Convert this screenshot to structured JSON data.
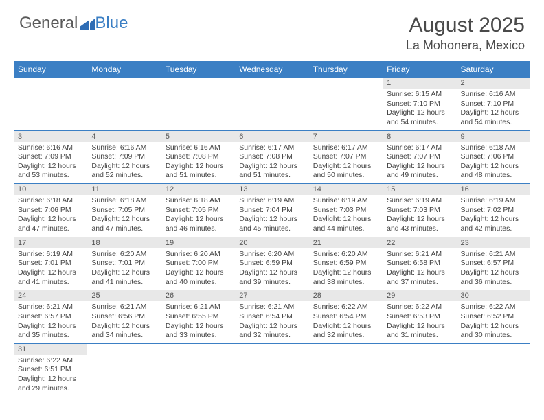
{
  "logo": {
    "text_general": "General",
    "text_blue": "Blue"
  },
  "title": {
    "month": "August 2025",
    "location": "La Mohonera, Mexico"
  },
  "colors": {
    "header_bg": "#3b7fc4",
    "header_fg": "#ffffff",
    "daynum_bg": "#e8e8e8",
    "daynum_fg": "#555555",
    "text": "#444444",
    "row_border": "#3b7fc4",
    "logo_gray": "#5a5a5a",
    "logo_blue": "#3b7fc4",
    "page_bg": "#ffffff"
  },
  "typography": {
    "month_fontsize": 30,
    "location_fontsize": 18,
    "weekday_fontsize": 12,
    "daynum_fontsize": 11,
    "dayinfo_fontsize": 10.5,
    "font_family": "Arial"
  },
  "weekdays": [
    "Sunday",
    "Monday",
    "Tuesday",
    "Wednesday",
    "Thursday",
    "Friday",
    "Saturday"
  ],
  "weeks": [
    [
      null,
      null,
      null,
      null,
      null,
      {
        "num": "1",
        "sunrise": "Sunrise: 6:15 AM",
        "sunset": "Sunset: 7:10 PM",
        "daylight": "Daylight: 12 hours and 54 minutes."
      },
      {
        "num": "2",
        "sunrise": "Sunrise: 6:16 AM",
        "sunset": "Sunset: 7:10 PM",
        "daylight": "Daylight: 12 hours and 54 minutes."
      }
    ],
    [
      {
        "num": "3",
        "sunrise": "Sunrise: 6:16 AM",
        "sunset": "Sunset: 7:09 PM",
        "daylight": "Daylight: 12 hours and 53 minutes."
      },
      {
        "num": "4",
        "sunrise": "Sunrise: 6:16 AM",
        "sunset": "Sunset: 7:09 PM",
        "daylight": "Daylight: 12 hours and 52 minutes."
      },
      {
        "num": "5",
        "sunrise": "Sunrise: 6:16 AM",
        "sunset": "Sunset: 7:08 PM",
        "daylight": "Daylight: 12 hours and 51 minutes."
      },
      {
        "num": "6",
        "sunrise": "Sunrise: 6:17 AM",
        "sunset": "Sunset: 7:08 PM",
        "daylight": "Daylight: 12 hours and 51 minutes."
      },
      {
        "num": "7",
        "sunrise": "Sunrise: 6:17 AM",
        "sunset": "Sunset: 7:07 PM",
        "daylight": "Daylight: 12 hours and 50 minutes."
      },
      {
        "num": "8",
        "sunrise": "Sunrise: 6:17 AM",
        "sunset": "Sunset: 7:07 PM",
        "daylight": "Daylight: 12 hours and 49 minutes."
      },
      {
        "num": "9",
        "sunrise": "Sunrise: 6:18 AM",
        "sunset": "Sunset: 7:06 PM",
        "daylight": "Daylight: 12 hours and 48 minutes."
      }
    ],
    [
      {
        "num": "10",
        "sunrise": "Sunrise: 6:18 AM",
        "sunset": "Sunset: 7:06 PM",
        "daylight": "Daylight: 12 hours and 47 minutes."
      },
      {
        "num": "11",
        "sunrise": "Sunrise: 6:18 AM",
        "sunset": "Sunset: 7:05 PM",
        "daylight": "Daylight: 12 hours and 47 minutes."
      },
      {
        "num": "12",
        "sunrise": "Sunrise: 6:18 AM",
        "sunset": "Sunset: 7:05 PM",
        "daylight": "Daylight: 12 hours and 46 minutes."
      },
      {
        "num": "13",
        "sunrise": "Sunrise: 6:19 AM",
        "sunset": "Sunset: 7:04 PM",
        "daylight": "Daylight: 12 hours and 45 minutes."
      },
      {
        "num": "14",
        "sunrise": "Sunrise: 6:19 AM",
        "sunset": "Sunset: 7:03 PM",
        "daylight": "Daylight: 12 hours and 44 minutes."
      },
      {
        "num": "15",
        "sunrise": "Sunrise: 6:19 AM",
        "sunset": "Sunset: 7:03 PM",
        "daylight": "Daylight: 12 hours and 43 minutes."
      },
      {
        "num": "16",
        "sunrise": "Sunrise: 6:19 AM",
        "sunset": "Sunset: 7:02 PM",
        "daylight": "Daylight: 12 hours and 42 minutes."
      }
    ],
    [
      {
        "num": "17",
        "sunrise": "Sunrise: 6:19 AM",
        "sunset": "Sunset: 7:01 PM",
        "daylight": "Daylight: 12 hours and 41 minutes."
      },
      {
        "num": "18",
        "sunrise": "Sunrise: 6:20 AM",
        "sunset": "Sunset: 7:01 PM",
        "daylight": "Daylight: 12 hours and 41 minutes."
      },
      {
        "num": "19",
        "sunrise": "Sunrise: 6:20 AM",
        "sunset": "Sunset: 7:00 PM",
        "daylight": "Daylight: 12 hours and 40 minutes."
      },
      {
        "num": "20",
        "sunrise": "Sunrise: 6:20 AM",
        "sunset": "Sunset: 6:59 PM",
        "daylight": "Daylight: 12 hours and 39 minutes."
      },
      {
        "num": "21",
        "sunrise": "Sunrise: 6:20 AM",
        "sunset": "Sunset: 6:59 PM",
        "daylight": "Daylight: 12 hours and 38 minutes."
      },
      {
        "num": "22",
        "sunrise": "Sunrise: 6:21 AM",
        "sunset": "Sunset: 6:58 PM",
        "daylight": "Daylight: 12 hours and 37 minutes."
      },
      {
        "num": "23",
        "sunrise": "Sunrise: 6:21 AM",
        "sunset": "Sunset: 6:57 PM",
        "daylight": "Daylight: 12 hours and 36 minutes."
      }
    ],
    [
      {
        "num": "24",
        "sunrise": "Sunrise: 6:21 AM",
        "sunset": "Sunset: 6:57 PM",
        "daylight": "Daylight: 12 hours and 35 minutes."
      },
      {
        "num": "25",
        "sunrise": "Sunrise: 6:21 AM",
        "sunset": "Sunset: 6:56 PM",
        "daylight": "Daylight: 12 hours and 34 minutes."
      },
      {
        "num": "26",
        "sunrise": "Sunrise: 6:21 AM",
        "sunset": "Sunset: 6:55 PM",
        "daylight": "Daylight: 12 hours and 33 minutes."
      },
      {
        "num": "27",
        "sunrise": "Sunrise: 6:21 AM",
        "sunset": "Sunset: 6:54 PM",
        "daylight": "Daylight: 12 hours and 32 minutes."
      },
      {
        "num": "28",
        "sunrise": "Sunrise: 6:22 AM",
        "sunset": "Sunset: 6:54 PM",
        "daylight": "Daylight: 12 hours and 32 minutes."
      },
      {
        "num": "29",
        "sunrise": "Sunrise: 6:22 AM",
        "sunset": "Sunset: 6:53 PM",
        "daylight": "Daylight: 12 hours and 31 minutes."
      },
      {
        "num": "30",
        "sunrise": "Sunrise: 6:22 AM",
        "sunset": "Sunset: 6:52 PM",
        "daylight": "Daylight: 12 hours and 30 minutes."
      }
    ],
    [
      {
        "num": "31",
        "sunrise": "Sunrise: 6:22 AM",
        "sunset": "Sunset: 6:51 PM",
        "daylight": "Daylight: 12 hours and 29 minutes."
      },
      null,
      null,
      null,
      null,
      null,
      null
    ]
  ]
}
